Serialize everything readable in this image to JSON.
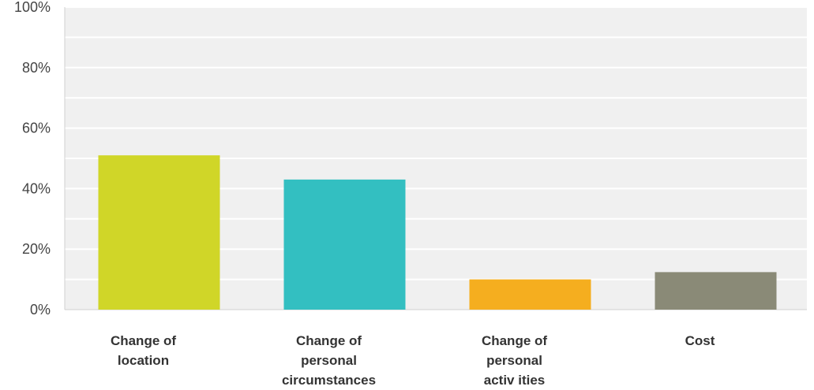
{
  "chart_data": {
    "type": "bar",
    "categories": [
      [
        "Change of",
        "location"
      ],
      [
        "Change of",
        "personal",
        "circumstances"
      ],
      [
        "Change of",
        "personal",
        "activ ities"
      ],
      [
        "Cost"
      ]
    ],
    "values": [
      51,
      43,
      10,
      12.4
    ],
    "colors": [
      "#D0D628",
      "#33BFC1",
      "#F5AE1F",
      "#8A8A77"
    ],
    "y_ticks": [
      "0%",
      "20%",
      "40%",
      "60%",
      "80%",
      "100%"
    ],
    "ylim": [
      0,
      100
    ],
    "grid": true,
    "plot_background": "#F0F0F0",
    "title": "",
    "xlabel": "",
    "ylabel": ""
  }
}
